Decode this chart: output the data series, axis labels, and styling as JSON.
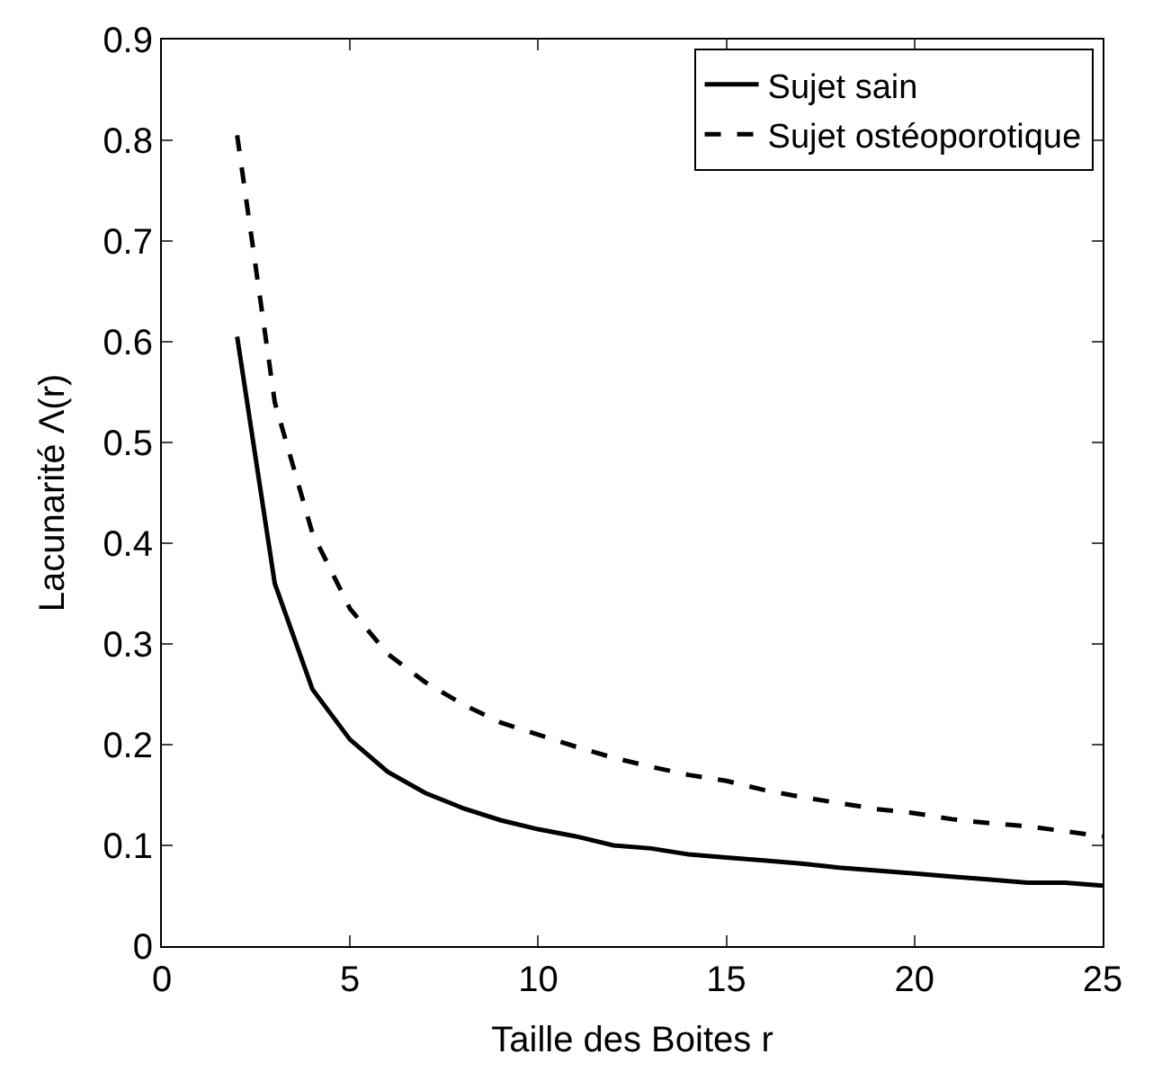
{
  "chart_data": {
    "type": "line",
    "xlabel": "Taille des Boites r",
    "ylabel": "Lacunarité Λ(r)",
    "x": [
      2,
      3,
      4,
      5,
      6,
      7,
      8,
      9,
      10,
      11,
      12,
      13,
      14,
      15,
      16,
      17,
      18,
      19,
      20,
      21,
      22,
      23,
      24,
      25
    ],
    "series": [
      {
        "name": "Sujet sain",
        "color": "#000000",
        "line_style": "solid",
        "values": [
          0.605,
          0.36,
          0.255,
          0.205,
          0.173,
          0.152,
          0.137,
          0.125,
          0.116,
          0.109,
          0.1,
          0.097,
          0.091,
          0.088,
          0.085,
          0.082,
          0.078,
          0.075,
          0.072,
          0.069,
          0.066,
          0.063,
          0.063,
          0.06
        ]
      },
      {
        "name": "Sujet ostéoporotique",
        "color": "#000000",
        "line_style": "dashed",
        "values": [
          0.805,
          0.54,
          0.41,
          0.335,
          0.29,
          0.262,
          0.24,
          0.222,
          0.21,
          0.198,
          0.187,
          0.178,
          0.17,
          0.164,
          0.155,
          0.148,
          0.142,
          0.136,
          0.132,
          0.126,
          0.122,
          0.119,
          0.114,
          0.109
        ]
      }
    ],
    "xlim": [
      0,
      25
    ],
    "xticks": [
      0,
      5,
      10,
      15,
      20,
      25
    ],
    "ylim": [
      0,
      0.9
    ],
    "yticks": [
      0,
      0.1,
      0.2,
      0.3,
      0.4,
      0.5,
      0.6,
      0.7,
      0.8,
      0.9
    ],
    "legend": "top right",
    "marker": "none"
  }
}
